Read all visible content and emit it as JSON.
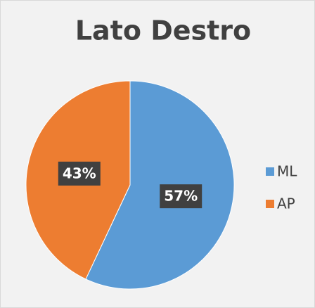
{
  "chart_data": {
    "type": "pie",
    "title": "Lato Destro",
    "categories": [
      "ML",
      "AP"
    ],
    "values": [
      57,
      43
    ],
    "value_labels": [
      "57%",
      "43%"
    ],
    "colors": [
      "#5b9bd5",
      "#ed7d31"
    ],
    "legend": "right"
  }
}
